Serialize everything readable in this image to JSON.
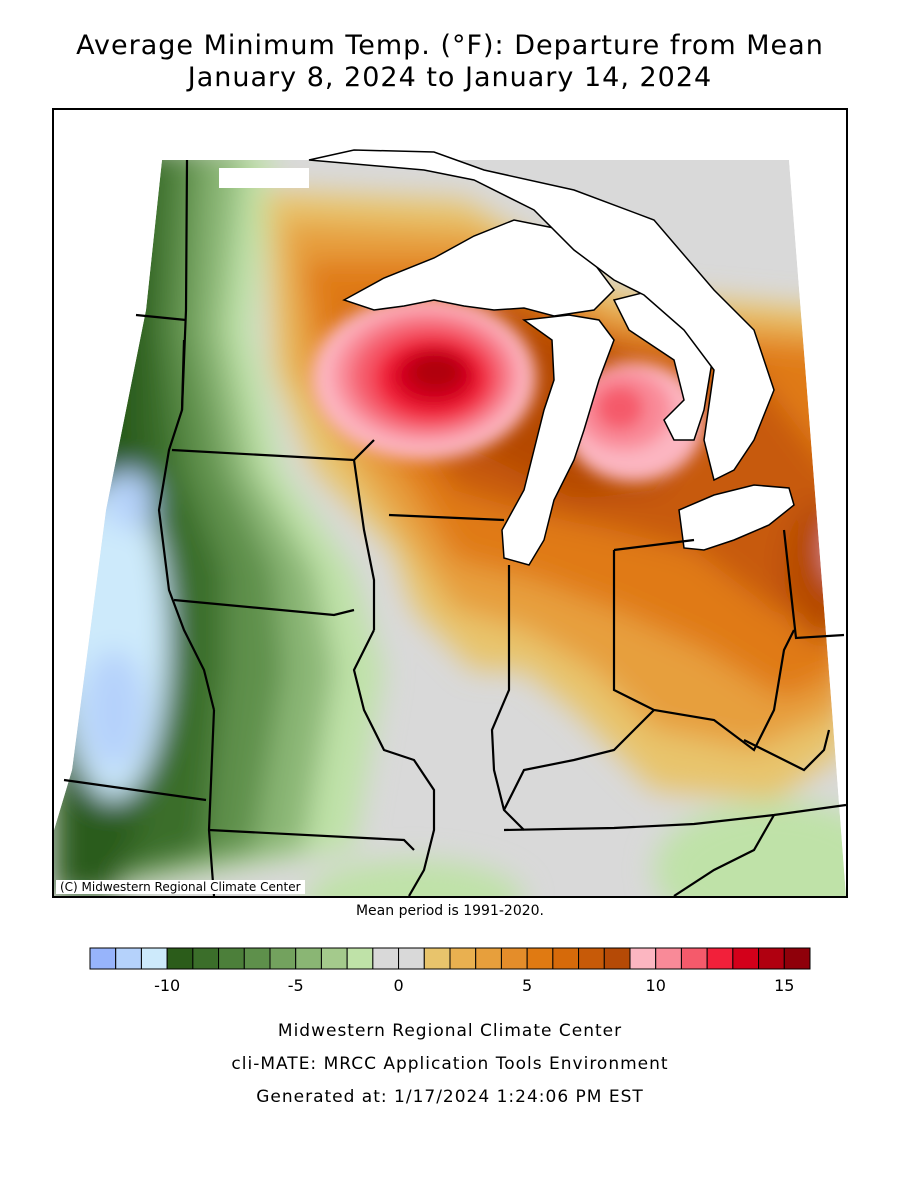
{
  "title_line1": "Average Minimum Temp. (°F): Departure from Mean",
  "title_line2": "January 8, 2024 to January 14, 2024",
  "copyright": "(C) Midwestern Regional Climate Center",
  "mean_period": "Mean period is 1991-2020.",
  "legend": {
    "colors": [
      "#97b4fb",
      "#b5d2fb",
      "#cdeafb",
      "#2b5c1a",
      "#3b6e2a",
      "#4c7f3a",
      "#5e904b",
      "#73a25e",
      "#8ab674",
      "#a4ca8c",
      "#bfe2a8",
      "#d9d9d9",
      "#d9d9d9",
      "#e8c46c",
      "#e9b050",
      "#e79f3c",
      "#e48d2a",
      "#e07a12",
      "#d66a0a",
      "#c75a08",
      "#b54a06",
      "#fcb6c1",
      "#f98a98",
      "#f55a6b",
      "#f2203a",
      "#d3001a",
      "#b00010",
      "#8f000a"
    ],
    "tick_labels": [
      "-10",
      "-5",
      "0",
      "5",
      "10",
      "15"
    ]
  },
  "map_values": {
    "upper_wisconsin_peak_departure_F": 15,
    "northern_lower_michigan_peak_departure_F": 11,
    "western_dakotas_min_departure_F": -11
  },
  "footer": {
    "line1": "Midwestern Regional Climate Center",
    "line2": "cli-MATE: MRCC Application Tools Environment",
    "line3": "Generated at: 1/17/2024 1:24:06 PM EST"
  }
}
